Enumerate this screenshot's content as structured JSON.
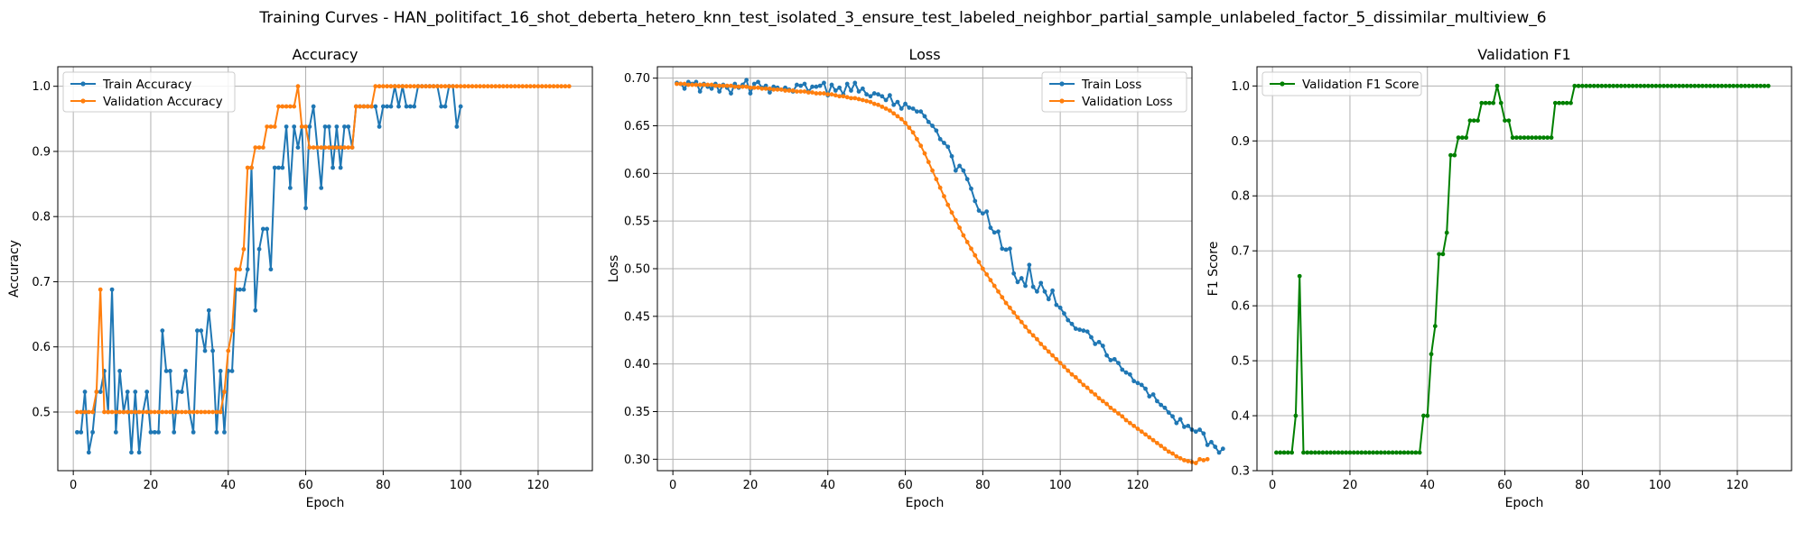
{
  "figure": {
    "title": "Training Curves - HAN_politifact_16_shot_deberta_hetero_knn_test_isolated_3_ensure_test_labeled_neighbor_partial_sample_unlabeled_factor_5_dissimilar_multiview_6"
  },
  "colors": {
    "train": "#1f77b4",
    "validation": "#ff7f0e",
    "f1": "#008000"
  },
  "chart_data": [
    {
      "type": "line",
      "title": "Accuracy",
      "xlabel": "Epoch",
      "ylabel": "Accuracy",
      "xlim": [
        -4,
        134
      ],
      "ylim": [
        0.41,
        1.03
      ],
      "xticks": [
        0,
        20,
        40,
        60,
        80,
        100,
        120
      ],
      "yticks": [
        0.5,
        0.6,
        0.7,
        0.8,
        0.9,
        1.0
      ],
      "ytick_labels": [
        "0.5",
        "0.6",
        "0.7",
        "0.8",
        "0.9",
        "1.0"
      ],
      "grid": true,
      "legend": "upper-left",
      "series": [
        {
          "name": "Train Accuracy",
          "color_key": "train",
          "x_start": 1,
          "values": [
            0.469,
            0.469,
            0.531,
            0.438,
            0.469,
            0.531,
            0.531,
            0.563,
            0.5,
            0.688,
            0.469,
            0.563,
            0.5,
            0.531,
            0.438,
            0.531,
            0.438,
            0.5,
            0.531,
            0.469,
            0.469,
            0.469,
            0.625,
            0.563,
            0.563,
            0.469,
            0.531,
            0.531,
            0.563,
            0.5,
            0.469,
            0.625,
            0.625,
            0.594,
            0.656,
            0.594,
            0.469,
            0.563,
            0.469,
            0.563,
            0.563,
            0.688,
            0.688,
            0.688,
            0.719,
            0.875,
            0.656,
            0.75,
            0.781,
            0.781,
            0.719,
            0.875,
            0.875,
            0.875,
            0.938,
            0.844,
            0.938,
            0.906,
            0.938,
            0.813,
            0.938,
            0.969,
            0.906,
            0.844,
            0.938,
            0.938,
            0.875,
            0.938,
            0.875,
            0.938,
            0.938,
            0.906,
            0.969,
            0.969,
            0.969,
            0.969,
            0.969,
            0.969,
            0.938,
            0.969,
            0.969,
            0.969,
            1.0,
            0.969,
            1.0,
            0.969,
            0.969,
            0.969,
            1.0,
            1.0,
            1.0,
            1.0,
            1.0,
            1.0,
            0.969,
            0.969,
            1.0,
            1.0,
            0.938,
            0.969
          ]
        },
        {
          "name": "Validation Accuracy",
          "color_key": "validation",
          "x_start": 1,
          "values": [
            0.5,
            0.5,
            0.5,
            0.5,
            0.5,
            0.531,
            0.688,
            0.5,
            0.5,
            0.5,
            0.5,
            0.5,
            0.5,
            0.5,
            0.5,
            0.5,
            0.5,
            0.5,
            0.5,
            0.5,
            0.5,
            0.5,
            0.5,
            0.5,
            0.5,
            0.5,
            0.5,
            0.5,
            0.5,
            0.5,
            0.5,
            0.5,
            0.5,
            0.5,
            0.5,
            0.5,
            0.5,
            0.5,
            0.531,
            0.594,
            0.625,
            0.719,
            0.719,
            0.75,
            0.875,
            0.875,
            0.906,
            0.906,
            0.906,
            0.938,
            0.938,
            0.938,
            0.969,
            0.969,
            0.969,
            0.969,
            0.969,
            1.0,
            0.938,
            0.938,
            0.906,
            0.906,
            0.906,
            0.906,
            0.906,
            0.906,
            0.906,
            0.906,
            0.906,
            0.906,
            0.906,
            0.906,
            0.969,
            0.969,
            0.969,
            0.969,
            0.969,
            1.0,
            1.0,
            1.0,
            1.0,
            1.0,
            1.0,
            1.0,
            1.0,
            1.0,
            1.0,
            1.0,
            1.0,
            1.0,
            1.0,
            1.0,
            1.0,
            1.0,
            1.0,
            1.0,
            1.0,
            1.0,
            1.0,
            1.0,
            1.0,
            1.0,
            1.0,
            1.0,
            1.0,
            1.0,
            1.0,
            1.0,
            1.0,
            1.0,
            1.0,
            1.0,
            1.0,
            1.0,
            1.0,
            1.0,
            1.0,
            1.0,
            1.0,
            1.0,
            1.0,
            1.0,
            1.0,
            1.0,
            1.0,
            1.0,
            1.0,
            1.0
          ]
        }
      ]
    },
    {
      "type": "line",
      "title": "Loss",
      "xlabel": "Epoch",
      "ylabel": "Loss",
      "xlim": [
        -4,
        134
      ],
      "ylim": [
        0.288,
        0.712
      ],
      "xticks": [
        0,
        20,
        40,
        60,
        80,
        100,
        120
      ],
      "yticks": [
        0.3,
        0.35,
        0.4,
        0.45,
        0.5,
        0.55,
        0.6,
        0.65,
        0.7
      ],
      "ytick_labels": [
        "0.30",
        "0.35",
        "0.40",
        "0.45",
        "0.50",
        "0.55",
        "0.60",
        "0.65",
        "0.70"
      ],
      "grid": true,
      "legend": "upper-right",
      "series": [
        {
          "name": "Train Loss",
          "color_key": "train",
          "x_start": 1,
          "values": [
            0.695,
            0.694,
            0.689,
            0.696,
            0.694,
            0.696,
            0.686,
            0.694,
            0.691,
            0.689,
            0.694,
            0.686,
            0.693,
            0.69,
            0.684,
            0.694,
            0.69,
            0.693,
            0.698,
            0.684,
            0.694,
            0.696,
            0.69,
            0.692,
            0.685,
            0.691,
            0.69,
            0.688,
            0.69,
            0.688,
            0.686,
            0.693,
            0.692,
            0.694,
            0.686,
            0.691,
            0.691,
            0.692,
            0.695,
            0.682,
            0.693,
            0.687,
            0.69,
            0.683,
            0.694,
            0.687,
            0.695,
            0.686,
            0.689,
            0.683,
            0.681,
            0.684,
            0.683,
            0.681,
            0.677,
            0.682,
            0.672,
            0.675,
            0.668,
            0.673,
            0.669,
            0.668,
            0.665,
            0.665,
            0.66,
            0.654,
            0.65,
            0.645,
            0.636,
            0.632,
            0.628,
            0.618,
            0.603,
            0.608,
            0.603,
            0.594,
            0.584,
            0.571,
            0.561,
            0.558,
            0.56,
            0.543,
            0.538,
            0.539,
            0.521,
            0.52,
            0.521,
            0.495,
            0.486,
            0.49,
            0.482,
            0.504,
            0.481,
            0.476,
            0.485,
            0.476,
            0.468,
            0.477,
            0.462,
            0.459,
            0.453,
            0.446,
            0.442,
            0.437,
            0.436,
            0.435,
            0.434,
            0.428,
            0.421,
            0.423,
            0.419,
            0.409,
            0.404,
            0.405,
            0.401,
            0.394,
            0.391,
            0.389,
            0.382,
            0.38,
            0.378,
            0.374,
            0.366,
            0.368,
            0.361,
            0.357,
            0.354,
            0.349,
            0.345,
            0.338,
            0.342,
            0.334,
            0.335,
            0.331,
            0.329,
            0.331,
            0.327,
            0.315,
            0.318,
            0.313,
            0.307,
            0.311
          ]
        },
        {
          "name": "Validation Loss",
          "color_key": "validation",
          "x_start": 1,
          "values": [
            0.694,
            0.694,
            0.694,
            0.693,
            0.693,
            0.693,
            0.693,
            0.693,
            0.693,
            0.693,
            0.692,
            0.692,
            0.692,
            0.692,
            0.692,
            0.691,
            0.691,
            0.691,
            0.691,
            0.69,
            0.69,
            0.69,
            0.689,
            0.689,
            0.689,
            0.688,
            0.688,
            0.688,
            0.687,
            0.687,
            0.687,
            0.686,
            0.686,
            0.686,
            0.685,
            0.685,
            0.684,
            0.684,
            0.684,
            0.683,
            0.683,
            0.682,
            0.681,
            0.681,
            0.68,
            0.679,
            0.679,
            0.678,
            0.677,
            0.676,
            0.675,
            0.673,
            0.672,
            0.67,
            0.668,
            0.666,
            0.663,
            0.66,
            0.657,
            0.653,
            0.648,
            0.643,
            0.636,
            0.629,
            0.621,
            0.612,
            0.603,
            0.594,
            0.585,
            0.576,
            0.567,
            0.559,
            0.551,
            0.543,
            0.535,
            0.528,
            0.521,
            0.514,
            0.507,
            0.5,
            0.494,
            0.488,
            0.482,
            0.476,
            0.47,
            0.464,
            0.459,
            0.454,
            0.449,
            0.444,
            0.439,
            0.434,
            0.43,
            0.426,
            0.421,
            0.417,
            0.413,
            0.409,
            0.405,
            0.401,
            0.397,
            0.393,
            0.389,
            0.386,
            0.382,
            0.378,
            0.375,
            0.371,
            0.368,
            0.364,
            0.361,
            0.358,
            0.354,
            0.351,
            0.348,
            0.345,
            0.341,
            0.338,
            0.335,
            0.332,
            0.329,
            0.326,
            0.323,
            0.32,
            0.317,
            0.314,
            0.311,
            0.308,
            0.306,
            0.303,
            0.301,
            0.299,
            0.298,
            0.297,
            0.296,
            0.3,
            0.299,
            0.3
          ]
        }
      ]
    },
    {
      "type": "line",
      "title": "Validation F1",
      "xlabel": "Epoch",
      "ylabel": "F1 Score",
      "xlim": [
        -4,
        134
      ],
      "ylim": [
        0.3,
        1.035
      ],
      "xticks": [
        0,
        20,
        40,
        60,
        80,
        100,
        120
      ],
      "yticks": [
        0.3,
        0.4,
        0.5,
        0.6,
        0.7,
        0.8,
        0.9,
        1.0
      ],
      "ytick_labels": [
        "0.3",
        "0.4",
        "0.5",
        "0.6",
        "0.7",
        "0.8",
        "0.9",
        "1.0"
      ],
      "grid": true,
      "legend": "upper-left",
      "series": [
        {
          "name": "Validation F1 Score",
          "color_key": "f1",
          "x_start": 1,
          "values": [
            0.333,
            0.333,
            0.333,
            0.333,
            0.333,
            0.4,
            0.654,
            0.333,
            0.333,
            0.333,
            0.333,
            0.333,
            0.333,
            0.333,
            0.333,
            0.333,
            0.333,
            0.333,
            0.333,
            0.333,
            0.333,
            0.333,
            0.333,
            0.333,
            0.333,
            0.333,
            0.333,
            0.333,
            0.333,
            0.333,
            0.333,
            0.333,
            0.333,
            0.333,
            0.333,
            0.333,
            0.333,
            0.333,
            0.4,
            0.4,
            0.512,
            0.563,
            0.694,
            0.694,
            0.733,
            0.874,
            0.874,
            0.906,
            0.906,
            0.906,
            0.937,
            0.937,
            0.937,
            0.969,
            0.969,
            0.969,
            0.969,
            1.0,
            0.969,
            0.937,
            0.937,
            0.906,
            0.906,
            0.906,
            0.906,
            0.906,
            0.906,
            0.906,
            0.906,
            0.906,
            0.906,
            0.906,
            0.969,
            0.969,
            0.969,
            0.969,
            0.969,
            1.0,
            1.0,
            1.0,
            1.0,
            1.0,
            1.0,
            1.0,
            1.0,
            1.0,
            1.0,
            1.0,
            1.0,
            1.0,
            1.0,
            1.0,
            1.0,
            1.0,
            1.0,
            1.0,
            1.0,
            1.0,
            1.0,
            1.0,
            1.0,
            1.0,
            1.0,
            1.0,
            1.0,
            1.0,
            1.0,
            1.0,
            1.0,
            1.0,
            1.0,
            1.0,
            1.0,
            1.0,
            1.0,
            1.0,
            1.0,
            1.0,
            1.0,
            1.0,
            1.0,
            1.0,
            1.0,
            1.0,
            1.0,
            1.0,
            1.0,
            1.0
          ]
        }
      ]
    }
  ]
}
